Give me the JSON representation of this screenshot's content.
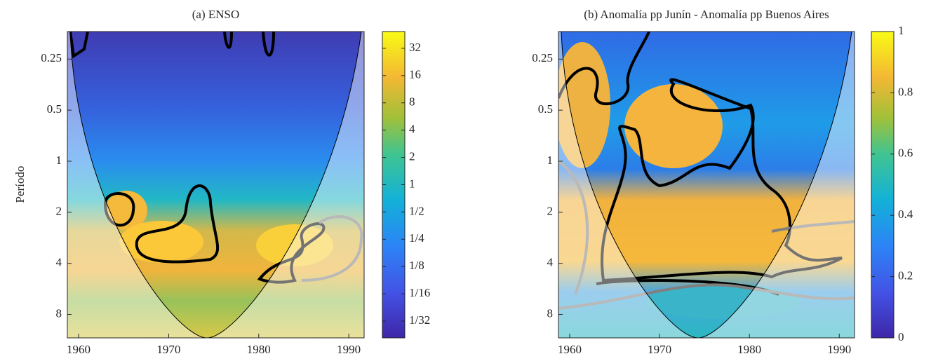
{
  "chart_data": [
    {
      "type": "heatmap",
      "title": "(a) ENSO",
      "ylabel": "Período",
      "xlim": [
        1958.75,
        1991.7
      ],
      "xticks": [
        1960,
        1970,
        1980,
        1990
      ],
      "ylim": [
        0.172,
        11.0
      ],
      "yticks": [
        0.25,
        0.5,
        1,
        2,
        4,
        8
      ],
      "log_y": true,
      "y_reversed": true,
      "colorbar": {
        "lim": [
          0.0204,
          49
        ],
        "log": true,
        "ticks": [
          {
            "value": 0.03125,
            "label": "1/32"
          },
          {
            "value": 0.0625,
            "label": "1/16"
          },
          {
            "value": 0.125,
            "label": "1/8"
          },
          {
            "value": 0.25,
            "label": "1/4"
          },
          {
            "value": 0.5,
            "label": "1/2"
          },
          1,
          2,
          4,
          8,
          16,
          32
        ]
      }
    },
    {
      "type": "heatmap",
      "title": "(b) Anomalía pp Junín - Anomalía pp Buenos Aires",
      "xlim": [
        1958.75,
        1991.7
      ],
      "xticks": [
        1960,
        1970,
        1980,
        1990
      ],
      "ylim": [
        0.172,
        11.0
      ],
      "yticks": [
        0.25,
        0.5,
        1,
        2,
        4,
        8
      ],
      "log_y": true,
      "y_reversed": true,
      "colorbar": {
        "lim": [
          0,
          1
        ],
        "log": false,
        "ticks": [
          0,
          0.2,
          0.4,
          0.6,
          0.8,
          1
        ]
      }
    }
  ]
}
